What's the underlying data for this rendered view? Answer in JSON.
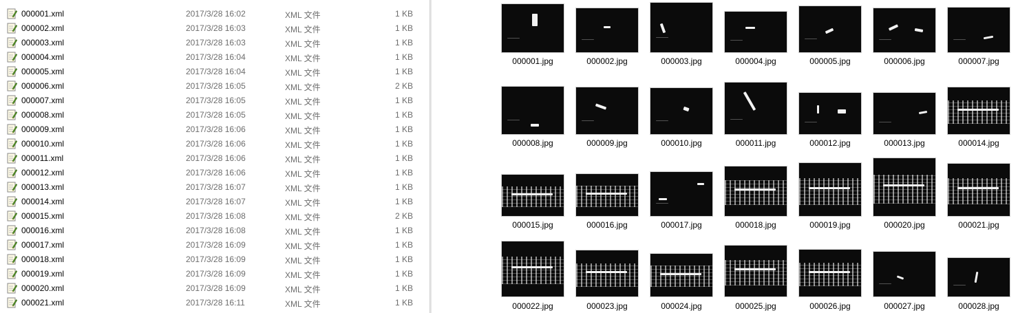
{
  "file_list": {
    "rows": [
      {
        "name": "000001.xml",
        "date": "2017/3/28 16:02",
        "type": "XML 文件",
        "size": "1 KB"
      },
      {
        "name": "000002.xml",
        "date": "2017/3/28 16:03",
        "type": "XML 文件",
        "size": "1 KB"
      },
      {
        "name": "000003.xml",
        "date": "2017/3/28 16:03",
        "type": "XML 文件",
        "size": "1 KB"
      },
      {
        "name": "000004.xml",
        "date": "2017/3/28 16:04",
        "type": "XML 文件",
        "size": "1 KB"
      },
      {
        "name": "000005.xml",
        "date": "2017/3/28 16:04",
        "type": "XML 文件",
        "size": "1 KB"
      },
      {
        "name": "000006.xml",
        "date": "2017/3/28 16:05",
        "type": "XML 文件",
        "size": "2 KB"
      },
      {
        "name": "000007.xml",
        "date": "2017/3/28 16:05",
        "type": "XML 文件",
        "size": "1 KB"
      },
      {
        "name": "000008.xml",
        "date": "2017/3/28 16:05",
        "type": "XML 文件",
        "size": "1 KB"
      },
      {
        "name": "000009.xml",
        "date": "2017/3/28 16:06",
        "type": "XML 文件",
        "size": "1 KB"
      },
      {
        "name": "000010.xml",
        "date": "2017/3/28 16:06",
        "type": "XML 文件",
        "size": "1 KB"
      },
      {
        "name": "000011.xml",
        "date": "2017/3/28 16:06",
        "type": "XML 文件",
        "size": "1 KB"
      },
      {
        "name": "000012.xml",
        "date": "2017/3/28 16:06",
        "type": "XML 文件",
        "size": "1 KB"
      },
      {
        "name": "000013.xml",
        "date": "2017/3/28 16:07",
        "type": "XML 文件",
        "size": "1 KB"
      },
      {
        "name": "000014.xml",
        "date": "2017/3/28 16:07",
        "type": "XML 文件",
        "size": "1 KB"
      },
      {
        "name": "000015.xml",
        "date": "2017/3/28 16:08",
        "type": "XML 文件",
        "size": "2 KB"
      },
      {
        "name": "000016.xml",
        "date": "2017/3/28 16:08",
        "type": "XML 文件",
        "size": "1 KB"
      },
      {
        "name": "000017.xml",
        "date": "2017/3/28 16:09",
        "type": "XML 文件",
        "size": "1 KB"
      },
      {
        "name": "000018.xml",
        "date": "2017/3/28 16:09",
        "type": "XML 文件",
        "size": "1 KB"
      },
      {
        "name": "000019.xml",
        "date": "2017/3/28 16:09",
        "type": "XML 文件",
        "size": "1 KB"
      },
      {
        "name": "000020.xml",
        "date": "2017/3/28 16:09",
        "type": "XML 文件",
        "size": "1 KB"
      },
      {
        "name": "000021.xml",
        "date": "2017/3/28 16:11",
        "type": "XML 文件",
        "size": "1 KB"
      }
    ]
  },
  "thumbnails": {
    "items": [
      {
        "label": "000001.jpg",
        "scene": "ship"
      },
      {
        "label": "000002.jpg",
        "scene": "ship"
      },
      {
        "label": "000003.jpg",
        "scene": "ship"
      },
      {
        "label": "000004.jpg",
        "scene": "ship"
      },
      {
        "label": "000005.jpg",
        "scene": "ship"
      },
      {
        "label": "000006.jpg",
        "scene": "ship"
      },
      {
        "label": "000007.jpg",
        "scene": "ship"
      },
      {
        "label": "000008.jpg",
        "scene": "ship"
      },
      {
        "label": "000009.jpg",
        "scene": "ship"
      },
      {
        "label": "000010.jpg",
        "scene": "ship"
      },
      {
        "label": "000011.jpg",
        "scene": "ship"
      },
      {
        "label": "000012.jpg",
        "scene": "ship"
      },
      {
        "label": "000013.jpg",
        "scene": "ship"
      },
      {
        "label": "000014.jpg",
        "scene": "port"
      },
      {
        "label": "000015.jpg",
        "scene": "port"
      },
      {
        "label": "000016.jpg",
        "scene": "port"
      },
      {
        "label": "000017.jpg",
        "scene": "ship"
      },
      {
        "label": "000018.jpg",
        "scene": "port"
      },
      {
        "label": "000019.jpg",
        "scene": "port"
      },
      {
        "label": "000020.jpg",
        "scene": "port"
      },
      {
        "label": "000021.jpg",
        "scene": "port"
      },
      {
        "label": "000022.jpg",
        "scene": "port"
      },
      {
        "label": "000023.jpg",
        "scene": "port"
      },
      {
        "label": "000024.jpg",
        "scene": "port"
      },
      {
        "label": "000025.jpg",
        "scene": "port"
      },
      {
        "label": "000026.jpg",
        "scene": "port"
      },
      {
        "label": "000027.jpg",
        "scene": "ship"
      },
      {
        "label": "000028.jpg",
        "scene": "ship"
      }
    ]
  },
  "colors": {
    "meta_text": "#6d6d6d",
    "thumb_background": "#0b0b0b",
    "icon_page": "#fffbe6",
    "icon_pencil": "#5a9a2a"
  }
}
